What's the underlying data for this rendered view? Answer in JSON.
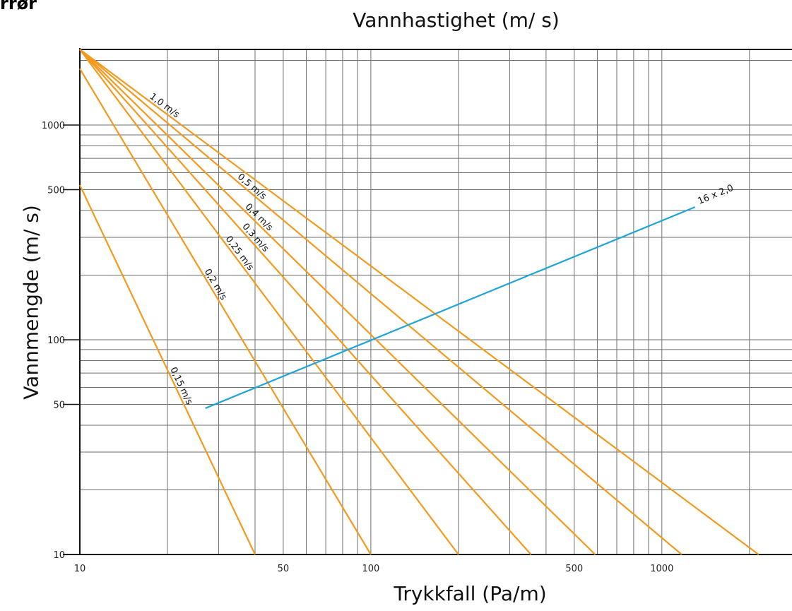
{
  "corner_title": "rrør",
  "chart_data": {
    "type": "line",
    "title": "Vannhastighet (m/ s)",
    "xlabel": "Trykkfall (Pa/m)",
    "ylabel": "Vannmengde (m/ s)",
    "xscale": "log",
    "yscale": "log",
    "xlim": [
      10,
      2800
    ],
    "ylim": [
      10,
      2250
    ],
    "grid": true,
    "x_ticks": [
      {
        "value": 10,
        "label": "10"
      },
      {
        "value": 50,
        "label": "50"
      },
      {
        "value": 100,
        "label": "100"
      },
      {
        "value": 500,
        "label": "500"
      },
      {
        "value": 1000,
        "label": "1000"
      }
    ],
    "y_ticks": [
      {
        "value": 10,
        "label": "10"
      },
      {
        "value": 50,
        "label": "50"
      },
      {
        "value": 100,
        "label": "100"
      },
      {
        "value": 500,
        "label": "500"
      },
      {
        "value": 1000,
        "label": "1000"
      }
    ],
    "velocity_lines": [
      {
        "label": "0,15 m/s",
        "points": [
          [
            10,
            525
          ],
          [
            40,
            10
          ]
        ],
        "color": "#f39a1e"
      },
      {
        "label": "0,2 m/s",
        "points": [
          [
            10,
            1830
          ],
          [
            100,
            10
          ]
        ],
        "color": "#f39a1e"
      },
      {
        "label": "0,25 m/s",
        "points": [
          [
            10,
            2250
          ],
          [
            200,
            10
          ]
        ],
        "color": "#f39a1e"
      },
      {
        "label": "0,3 m/s",
        "points": [
          [
            10,
            2250
          ],
          [
            355,
            10
          ]
        ],
        "color": "#f39a1e"
      },
      {
        "label": "0,4 m/s",
        "points": [
          [
            10,
            2250
          ],
          [
            590,
            10
          ]
        ],
        "color": "#f39a1e"
      },
      {
        "label": "0,5 m/s",
        "points": [
          [
            10,
            2250
          ],
          [
            1170,
            10
          ]
        ],
        "color": "#f39a1e"
      },
      {
        "label": "1,0 m/s",
        "points": [
          [
            10,
            2250
          ],
          [
            2150,
            10
          ]
        ],
        "color": "#f39a1e"
      }
    ],
    "series": [
      {
        "name": "16 x 2,0",
        "points": [
          [
            27,
            48
          ],
          [
            1300,
            415
          ]
        ],
        "color": "#1fa3dc"
      }
    ]
  }
}
